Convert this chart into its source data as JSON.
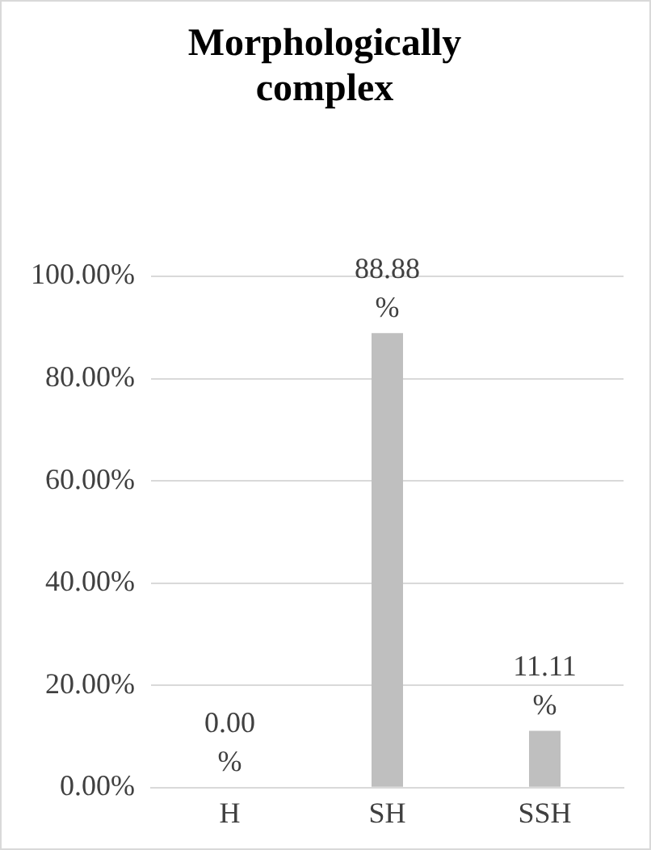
{
  "chart_data": {
    "type": "bar",
    "title": "Morphologically complex",
    "categories": [
      "H",
      "SH",
      "SSH"
    ],
    "values": [
      0,
      88.88,
      11.11
    ],
    "value_labels": [
      "0.00%",
      "88.88%",
      "11.11%"
    ],
    "color": "#bfbfbf",
    "ylim": [
      0,
      100
    ],
    "yticks": [
      {
        "value": 0,
        "label": "0.00%"
      },
      {
        "value": 20,
        "label": "20.00%"
      },
      {
        "value": 40,
        "label": "40.00%"
      },
      {
        "value": 60,
        "label": "60.00%"
      },
      {
        "value": 80,
        "label": "80.00%"
      },
      {
        "value": 100,
        "label": "100.00%"
      }
    ],
    "grid": "y",
    "legend": false
  }
}
